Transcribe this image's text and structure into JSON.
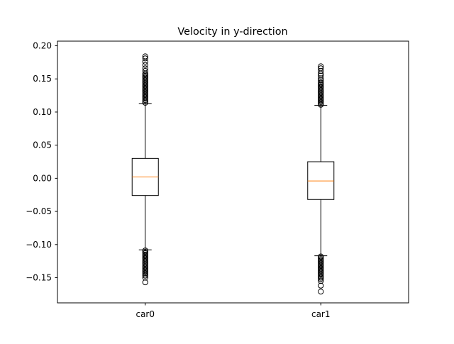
{
  "chart_data": {
    "type": "box",
    "title": "Velocity in y-direction",
    "xlabel": "",
    "ylabel": "",
    "categories": [
      "car0",
      "car1"
    ],
    "ylim": [
      -0.188,
      0.207
    ],
    "yticks": [
      -0.15,
      -0.1,
      -0.05,
      0.0,
      0.05,
      0.1,
      0.15,
      0.2
    ],
    "ytick_labels": [
      "−0.15",
      "−0.10",
      "−0.05",
      "0.00",
      "0.05",
      "0.10",
      "0.15",
      "0.20"
    ],
    "grid": false,
    "boxes": [
      {
        "name": "car0",
        "whisker_low": -0.108,
        "q1": -0.026,
        "median": 0.002,
        "q3": 0.03,
        "whisker_high": 0.113,
        "fliers_high": [
          0.114,
          0.116,
          0.118,
          0.12,
          0.122,
          0.124,
          0.126,
          0.128,
          0.13,
          0.132,
          0.134,
          0.136,
          0.138,
          0.14,
          0.142,
          0.144,
          0.146,
          0.148,
          0.15,
          0.152,
          0.154,
          0.156,
          0.158,
          0.162,
          0.166,
          0.171,
          0.176,
          0.181,
          0.184
        ],
        "fliers_low": [
          -0.109,
          -0.111,
          -0.113,
          -0.115,
          -0.117,
          -0.119,
          -0.121,
          -0.123,
          -0.125,
          -0.127,
          -0.129,
          -0.131,
          -0.133,
          -0.135,
          -0.137,
          -0.139,
          -0.141,
          -0.143,
          -0.145,
          -0.147,
          -0.15,
          -0.157
        ]
      },
      {
        "name": "car1",
        "whisker_low": -0.117,
        "q1": -0.032,
        "median": -0.004,
        "q3": 0.025,
        "whisker_high": 0.11,
        "fliers_high": [
          0.111,
          0.113,
          0.115,
          0.117,
          0.119,
          0.121,
          0.123,
          0.125,
          0.127,
          0.129,
          0.131,
          0.133,
          0.135,
          0.137,
          0.139,
          0.141,
          0.143,
          0.145,
          0.148,
          0.151,
          0.155,
          0.158,
          0.162,
          0.166,
          0.169
        ],
        "fliers_low": [
          -0.118,
          -0.12,
          -0.122,
          -0.124,
          -0.126,
          -0.128,
          -0.13,
          -0.132,
          -0.134,
          -0.136,
          -0.138,
          -0.14,
          -0.142,
          -0.144,
          -0.146,
          -0.148,
          -0.15,
          -0.152,
          -0.155,
          -0.162,
          -0.171
        ]
      }
    ],
    "colors": {
      "box": "#000000",
      "median": "#ff7f0e",
      "flier": "#000000"
    }
  }
}
